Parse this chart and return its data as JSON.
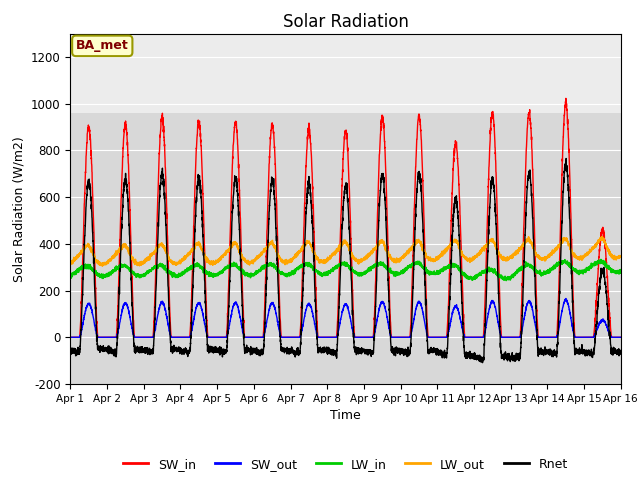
{
  "title": "Solar Radiation",
  "xlabel": "Time",
  "ylabel": "Solar Radiation (W/m2)",
  "ylim": [
    -200,
    1300
  ],
  "yticks": [
    -200,
    0,
    200,
    400,
    600,
    800,
    1000,
    1200
  ],
  "xlim": [
    0,
    15
  ],
  "xtick_labels": [
    "Apr 1",
    "Apr 2",
    "Apr 3",
    "Apr 4",
    "Apr 5",
    "Apr 6",
    "Apr 7",
    "Apr 8",
    "Apr 9",
    "Apr 10",
    "Apr 11",
    "Apr 12",
    "Apr 13",
    "Apr 14",
    "Apr 15",
    "Apr 16"
  ],
  "colors": {
    "SW_in": "#ff0000",
    "SW_out": "#0000ff",
    "LW_in": "#00cc00",
    "LW_out": "#ffa500",
    "Rnet": "#000000"
  },
  "annotation_text": "BA_met",
  "bg_inner": "#d8d8d8",
  "bg_outer": "#ffffff",
  "n_days": 15,
  "pts_per_day": 288,
  "sw_peaks": [
    900,
    910,
    935,
    920,
    920,
    910,
    890,
    880,
    945,
    945,
    830,
    960,
    960,
    1000,
    460
  ],
  "lw_in_base": 280,
  "lw_out_base": 335
}
